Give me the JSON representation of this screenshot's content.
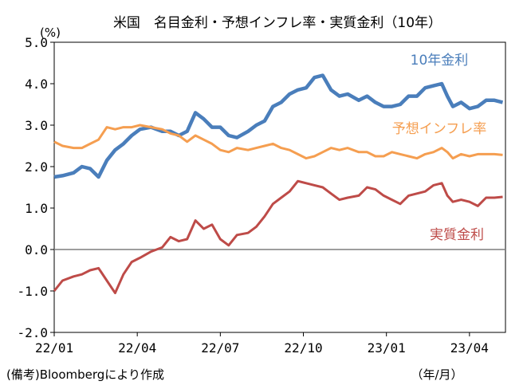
{
  "chart_data": {
    "type": "line",
    "title": "米国　名目金利・予想インフレ率・実質金利（10年）",
    "ylabel": "(%)",
    "xlabel": "（年/月）",
    "source": "(備考)Bloombergにより作成",
    "ylim": [
      -2.0,
      5.0
    ],
    "y_ticks": [
      "5.0",
      "4.0",
      "3.0",
      "2.0",
      "1.0",
      "0.0",
      "-1.0",
      "-2.0"
    ],
    "y_tick_values": [
      5,
      4,
      3,
      2,
      1,
      0,
      -1,
      -2
    ],
    "x_ticks": [
      "22/01",
      "22/04",
      "22/07",
      "22/10",
      "23/01",
      "23/04"
    ],
    "x_tick_months": [
      0,
      3,
      6,
      9,
      12,
      15
    ],
    "x_range_months": [
      0,
      16.3
    ],
    "series": [
      {
        "name": "10年金利",
        "color": "#4a7ebb",
        "x": [
          0,
          0.3,
          0.7,
          1.0,
          1.3,
          1.6,
          1.9,
          2.2,
          2.5,
          2.8,
          3.1,
          3.5,
          3.9,
          4.2,
          4.5,
          4.8,
          5.1,
          5.4,
          5.7,
          6.0,
          6.3,
          6.6,
          7.0,
          7.3,
          7.6,
          7.9,
          8.2,
          8.5,
          8.8,
          9.1,
          9.4,
          9.7,
          10.0,
          10.3,
          10.6,
          11.0,
          11.3,
          11.6,
          11.9,
          12.2,
          12.5,
          12.8,
          13.1,
          13.4,
          13.7,
          14.0,
          14.2,
          14.4,
          14.7,
          15.0,
          15.3,
          15.6,
          15.9,
          16.2
        ],
        "values": [
          1.75,
          1.78,
          1.85,
          2.0,
          1.95,
          1.75,
          2.15,
          2.4,
          2.55,
          2.75,
          2.9,
          2.95,
          2.85,
          2.85,
          2.75,
          2.85,
          3.3,
          3.15,
          2.95,
          2.95,
          2.75,
          2.7,
          2.85,
          3.0,
          3.1,
          3.45,
          3.55,
          3.75,
          3.85,
          3.9,
          4.15,
          4.2,
          3.85,
          3.7,
          3.75,
          3.6,
          3.7,
          3.55,
          3.45,
          3.45,
          3.5,
          3.7,
          3.7,
          3.9,
          3.95,
          4.0,
          3.7,
          3.45,
          3.55,
          3.4,
          3.45,
          3.6,
          3.6,
          3.55
        ]
      },
      {
        "name": "予想インフレ率",
        "color": "#f59e50",
        "x": [
          0,
          0.3,
          0.7,
          1.0,
          1.3,
          1.6,
          1.9,
          2.2,
          2.5,
          2.8,
          3.1,
          3.5,
          3.9,
          4.2,
          4.5,
          4.8,
          5.1,
          5.4,
          5.7,
          6.0,
          6.3,
          6.6,
          7.0,
          7.3,
          7.6,
          7.9,
          8.2,
          8.5,
          8.8,
          9.1,
          9.4,
          9.7,
          10.0,
          10.3,
          10.6,
          11.0,
          11.3,
          11.6,
          11.9,
          12.2,
          12.5,
          12.8,
          13.1,
          13.4,
          13.7,
          14.0,
          14.2,
          14.4,
          14.7,
          15.0,
          15.3,
          15.6,
          15.9,
          16.2
        ],
        "values": [
          2.6,
          2.5,
          2.45,
          2.45,
          2.55,
          2.65,
          2.95,
          2.9,
          2.95,
          2.95,
          3.0,
          2.95,
          2.9,
          2.8,
          2.75,
          2.6,
          2.75,
          2.65,
          2.55,
          2.4,
          2.35,
          2.45,
          2.4,
          2.45,
          2.5,
          2.55,
          2.45,
          2.4,
          2.3,
          2.2,
          2.25,
          2.35,
          2.45,
          2.4,
          2.45,
          2.35,
          2.35,
          2.25,
          2.25,
          2.35,
          2.3,
          2.25,
          2.2,
          2.3,
          2.35,
          2.45,
          2.35,
          2.2,
          2.3,
          2.25,
          2.3,
          2.3,
          2.3,
          2.28
        ]
      },
      {
        "name": "実質金利",
        "color": "#be4b48",
        "x": [
          0,
          0.3,
          0.7,
          1.0,
          1.3,
          1.6,
          1.9,
          2.2,
          2.5,
          2.8,
          3.1,
          3.5,
          3.9,
          4.2,
          4.5,
          4.8,
          5.1,
          5.4,
          5.7,
          6.0,
          6.3,
          6.6,
          7.0,
          7.3,
          7.6,
          7.9,
          8.2,
          8.5,
          8.8,
          9.1,
          9.4,
          9.7,
          10.0,
          10.3,
          10.6,
          11.0,
          11.3,
          11.6,
          11.9,
          12.2,
          12.5,
          12.8,
          13.1,
          13.4,
          13.7,
          14.0,
          14.2,
          14.4,
          14.7,
          15.0,
          15.3,
          15.6,
          15.9,
          16.2
        ],
        "values": [
          -1.0,
          -0.75,
          -0.65,
          -0.6,
          -0.5,
          -0.45,
          -0.75,
          -1.05,
          -0.6,
          -0.3,
          -0.2,
          -0.05,
          0.05,
          0.3,
          0.2,
          0.25,
          0.7,
          0.5,
          0.6,
          0.25,
          0.1,
          0.35,
          0.4,
          0.55,
          0.8,
          1.1,
          1.25,
          1.4,
          1.65,
          1.6,
          1.55,
          1.5,
          1.35,
          1.2,
          1.25,
          1.3,
          1.5,
          1.45,
          1.3,
          1.2,
          1.1,
          1.3,
          1.35,
          1.4,
          1.55,
          1.6,
          1.3,
          1.15,
          1.2,
          1.15,
          1.05,
          1.25,
          1.25,
          1.27
        ]
      }
    ],
    "labels": [
      {
        "series": 0,
        "text": "10年金利"
      },
      {
        "series": 1,
        "text": "予想インフレ率"
      },
      {
        "series": 2,
        "text": "実質金利"
      }
    ]
  }
}
